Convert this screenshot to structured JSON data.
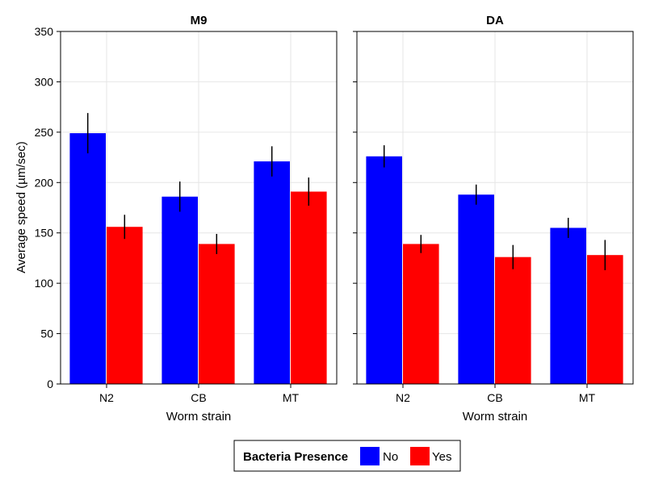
{
  "chart_data": {
    "type": "bar",
    "ylabel": "Average speed (µm/sec)",
    "ylim": [
      0,
      350
    ],
    "yticks": [
      0,
      50,
      100,
      150,
      200,
      250,
      300,
      350
    ],
    "grid": true,
    "legend": {
      "title": "Bacteria Presence",
      "placement": "bottom-center",
      "entries": [
        {
          "name": "No",
          "color": "#0000ff"
        },
        {
          "name": "Yes",
          "color": "#ff0000"
        }
      ]
    },
    "panels": [
      {
        "title": "M9",
        "xlabel": "Worm strain",
        "categories": [
          "N2",
          "CB",
          "MT"
        ],
        "series": [
          {
            "name": "No",
            "color": "#0000ff",
            "values": [
              249,
              186,
              221
            ],
            "errors": [
              20,
              15,
              15
            ]
          },
          {
            "name": "Yes",
            "color": "#ff0000",
            "values": [
              156,
              139,
              191
            ],
            "errors": [
              12,
              10,
              14
            ]
          }
        ]
      },
      {
        "title": "DA",
        "xlabel": "Worm strain",
        "categories": [
          "N2",
          "CB",
          "MT"
        ],
        "series": [
          {
            "name": "No",
            "color": "#0000ff",
            "values": [
              226,
              188,
              155
            ],
            "errors": [
              11,
              10,
              10
            ]
          },
          {
            "name": "Yes",
            "color": "#ff0000",
            "values": [
              139,
              126,
              128
            ],
            "errors": [
              9,
              12,
              15
            ]
          }
        ]
      }
    ]
  }
}
